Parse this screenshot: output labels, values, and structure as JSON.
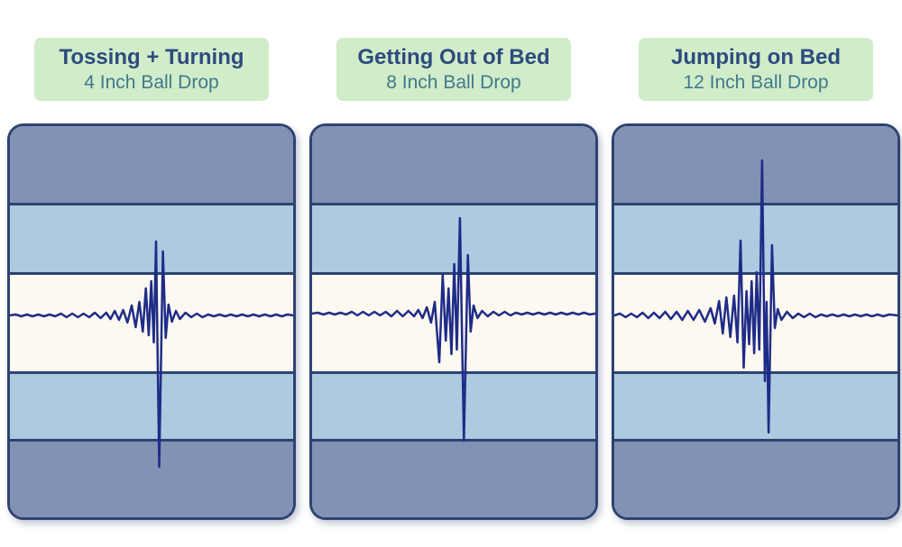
{
  "colors": {
    "header_bg": "#d1ecc9",
    "title_text": "#2e4b7e",
    "subtitle_text": "#3f7a8e",
    "card_border": "#2e4372",
    "band_dark": "#8192b4",
    "band_light": "#adcae1",
    "band_cream": "#fdf8f0",
    "wave_line": "#1e2c87",
    "page_background": "#ffffff"
  },
  "panels": [
    {
      "title": "Tossing + Turning",
      "subtitle": "4 Inch Ball Drop",
      "wave": {
        "baseline": 210,
        "points": [
          [
            0,
            0
          ],
          [
            2,
            -1
          ],
          [
            4,
            1
          ],
          [
            6,
            -1
          ],
          [
            8,
            1
          ],
          [
            10,
            -1
          ],
          [
            12,
            1
          ],
          [
            14,
            -1
          ],
          [
            16,
            1
          ],
          [
            18,
            -2
          ],
          [
            20,
            2
          ],
          [
            22,
            -2
          ],
          [
            24,
            2
          ],
          [
            26,
            -2
          ],
          [
            28,
            2
          ],
          [
            30,
            -3
          ],
          [
            32,
            3
          ],
          [
            34,
            -3
          ],
          [
            35.5,
            4
          ],
          [
            37,
            -5
          ],
          [
            38.5,
            5
          ],
          [
            40,
            -6
          ],
          [
            41.5,
            8
          ],
          [
            43,
            -11
          ],
          [
            44.4,
            13
          ],
          [
            45.7,
            -15
          ],
          [
            46.9,
            18
          ],
          [
            48,
            -30
          ],
          [
            49,
            22
          ],
          [
            49.9,
            -38
          ],
          [
            50.8,
            30
          ],
          [
            51.6,
            -82
          ],
          [
            52.7,
            168
          ],
          [
            54,
            -71
          ],
          [
            55,
            25
          ],
          [
            56,
            -12
          ],
          [
            57.2,
            7
          ],
          [
            58.6,
            -5
          ],
          [
            60,
            4
          ],
          [
            62,
            -3
          ],
          [
            64,
            2
          ],
          [
            66,
            -2
          ],
          [
            68,
            2
          ],
          [
            70,
            -1
          ],
          [
            72,
            1
          ],
          [
            74,
            -1
          ],
          [
            76,
            1
          ],
          [
            78,
            -1
          ],
          [
            80,
            1
          ],
          [
            82,
            -1
          ],
          [
            84,
            1
          ],
          [
            86,
            -1
          ],
          [
            88,
            1
          ],
          [
            90,
            -1
          ],
          [
            92,
            1
          ],
          [
            94,
            -1
          ],
          [
            96,
            1
          ],
          [
            98,
            -1
          ],
          [
            100,
            0
          ]
        ]
      }
    },
    {
      "title": "Getting Out of Bed",
      "subtitle": "8 Inch Ball Drop",
      "wave": {
        "baseline": 208,
        "points": [
          [
            0,
            0
          ],
          [
            2,
            -1
          ],
          [
            4,
            1
          ],
          [
            6,
            -1
          ],
          [
            8,
            1
          ],
          [
            10,
            -1
          ],
          [
            12,
            1
          ],
          [
            14,
            -2
          ],
          [
            16,
            2
          ],
          [
            18,
            -2
          ],
          [
            20,
            2
          ],
          [
            22,
            -2
          ],
          [
            24,
            2
          ],
          [
            26,
            -2
          ],
          [
            28,
            3
          ],
          [
            30,
            -3
          ],
          [
            32,
            3
          ],
          [
            34,
            -3
          ],
          [
            36,
            3
          ],
          [
            37.5,
            -4
          ],
          [
            39,
            5
          ],
          [
            40.5,
            -7
          ],
          [
            42,
            10
          ],
          [
            43.3,
            -13
          ],
          [
            44.9,
            54
          ],
          [
            46.1,
            -43
          ],
          [
            47.2,
            30
          ],
          [
            48.2,
            -28
          ],
          [
            49.2,
            45
          ],
          [
            50.2,
            -55
          ],
          [
            51.1,
            40
          ],
          [
            52.2,
            -106
          ],
          [
            53.6,
            141
          ],
          [
            55,
            -65
          ],
          [
            56,
            20
          ],
          [
            57,
            -9
          ],
          [
            58.4,
            5
          ],
          [
            60,
            -3
          ],
          [
            62,
            3
          ],
          [
            64,
            -2
          ],
          [
            66,
            2
          ],
          [
            68,
            -2
          ],
          [
            70,
            2
          ],
          [
            72,
            -1
          ],
          [
            74,
            1
          ],
          [
            76,
            -1
          ],
          [
            78,
            1
          ],
          [
            80,
            -1
          ],
          [
            82,
            1
          ],
          [
            84,
            -1
          ],
          [
            86,
            1
          ],
          [
            88,
            -1
          ],
          [
            90,
            1
          ],
          [
            92,
            -1
          ],
          [
            94,
            1
          ],
          [
            96,
            -1
          ],
          [
            98,
            1
          ],
          [
            100,
            0
          ]
        ]
      }
    },
    {
      "title": "Jumping on Bed",
      "subtitle": "12 Inch Ball Drop",
      "wave": {
        "baseline": 210,
        "points": [
          [
            0,
            0
          ],
          [
            2,
            -2
          ],
          [
            4,
            2
          ],
          [
            6,
            -2
          ],
          [
            8,
            2
          ],
          [
            10,
            -3
          ],
          [
            12,
            3
          ],
          [
            14,
            -3
          ],
          [
            16,
            3
          ],
          [
            18,
            -4
          ],
          [
            20,
            4
          ],
          [
            22,
            -4
          ],
          [
            24,
            5
          ],
          [
            26,
            -5
          ],
          [
            28,
            5
          ],
          [
            30,
            -6
          ],
          [
            32,
            7
          ],
          [
            34,
            -8
          ],
          [
            35.5,
            9
          ],
          [
            37,
            -16
          ],
          [
            38.3,
            20
          ],
          [
            39.6,
            -20
          ],
          [
            41,
            24
          ],
          [
            42.3,
            -22
          ],
          [
            43.5,
            30
          ],
          [
            44.6,
            -83
          ],
          [
            45.7,
            58
          ],
          [
            46.7,
            -27
          ],
          [
            47.6,
            32
          ],
          [
            48.5,
            -38
          ],
          [
            49.4,
            42
          ],
          [
            50.3,
            -48
          ],
          [
            51.2,
            38
          ],
          [
            52.2,
            -172
          ],
          [
            53.2,
            73
          ],
          [
            53.8,
            -15
          ],
          [
            54.5,
            130
          ],
          [
            55.7,
            -78
          ],
          [
            56.7,
            14
          ],
          [
            57.7,
            -7
          ],
          [
            59,
            5
          ],
          [
            61,
            -4
          ],
          [
            63,
            3
          ],
          [
            65,
            -2
          ],
          [
            67,
            2
          ],
          [
            69,
            -2
          ],
          [
            71,
            2
          ],
          [
            73,
            -1
          ],
          [
            75,
            1
          ],
          [
            77,
            -1
          ],
          [
            79,
            1
          ],
          [
            81,
            -1
          ],
          [
            83,
            1
          ],
          [
            85,
            -1
          ],
          [
            87,
            1
          ],
          [
            89,
            -1
          ],
          [
            91,
            1
          ],
          [
            93,
            -1
          ],
          [
            95,
            1
          ],
          [
            97,
            -1
          ],
          [
            100,
            0
          ]
        ]
      }
    }
  ]
}
